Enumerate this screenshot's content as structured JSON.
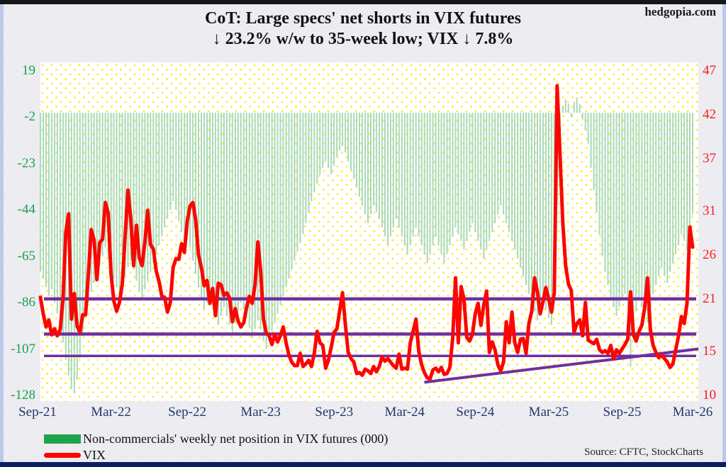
{
  "page": {
    "site": "hedgopia.com",
    "source": "Source: CFTC, StockCharts"
  },
  "title": {
    "line1": "CoT: Large specs' net shorts in VIX futures",
    "line2": "↓ 23.2% w/w to 35-week low; VIX ↓ 7.8%"
  },
  "legend": {
    "bar_label": "Non-commercials' weekly net position in VIX futures (000)",
    "line_label": "VIX"
  },
  "chart_data": {
    "type": "bar+line combo, weekly",
    "x_axis": {
      "tick_labels": [
        "Sep-21",
        "Mar-22",
        "Sep-22",
        "Mar-23",
        "Sep-23",
        "Mar-24",
        "Sep-24",
        "Mar-25",
        "Sep-25",
        "Mar-26"
      ],
      "tick_weeks": [
        -1,
        25,
        52,
        78,
        104,
        129,
        154,
        180,
        206,
        231
      ],
      "weeks_total": 232,
      "label_color": "#21396b"
    },
    "left_axis": {
      "min": -128,
      "max": 19,
      "ticks": [
        19,
        -2,
        -23,
        -44,
        -65,
        -86,
        -107,
        -128
      ],
      "color": "#1aa14c"
    },
    "right_axis": {
      "min": 10,
      "max": 47,
      "ticks": [
        47,
        42,
        37,
        31,
        26,
        21,
        15,
        10
      ],
      "color": "#f31e1e"
    },
    "series": [
      {
        "name": "Non-commercials' weekly net position in VIX futures (000)",
        "type": "bar",
        "axis": "left",
        "color": "#a8d9bb",
        "values": [
          -72,
          -75,
          -79,
          -83,
          -80,
          -86,
          -91,
          -97,
          -104,
          -112,
          -119,
          -125,
          -127,
          -121,
          -111,
          -101,
          -93,
          -86,
          -81,
          -77,
          -73,
          -69,
          -65,
          -61,
          -66,
          -71,
          -75,
          -79,
          -82,
          -78,
          -74,
          -70,
          -67,
          -71,
          -76,
          -81,
          -84,
          -80,
          -76,
          -72,
          -68,
          -64,
          -60,
          -56,
          -52,
          -48,
          -44,
          -40,
          -44,
          -49,
          -54,
          -59,
          -56,
          -61,
          -67,
          -73,
          -79,
          -84,
          -89,
          -86,
          -82,
          -87,
          -92,
          -96,
          -92,
          -88,
          -92,
          -96,
          -100,
          -95,
          -90,
          -86,
          -89,
          -93,
          -97,
          -102,
          -98,
          -94,
          -98,
          -103,
          -107,
          -103,
          -99,
          -95,
          -91,
          -87,
          -83,
          -79,
          -75,
          -71,
          -67,
          -63,
          -59,
          -55,
          -50,
          -45,
          -40,
          -36,
          -32,
          -28,
          -25,
          -22,
          -25,
          -28,
          -24,
          -20,
          -17,
          -15,
          -18,
          -22,
          -26,
          -30,
          -34,
          -38,
          -42,
          -46,
          -50,
          -46,
          -42,
          -45,
          -48,
          -52,
          -56,
          -60,
          -56,
          -52,
          -48,
          -52,
          -56,
          -60,
          -64,
          -60,
          -56,
          -52,
          -56,
          -60,
          -64,
          -68,
          -64,
          -60,
          -56,
          -60,
          -64,
          -68,
          -64,
          -60,
          -56,
          -52,
          -55,
          -58,
          -62,
          -58,
          -54,
          -50,
          -54,
          -58,
          -62,
          -66,
          -62,
          -58,
          -54,
          -50,
          -46,
          -42,
          -46,
          -50,
          -54,
          -58,
          -62,
          -66,
          -70,
          -74,
          -78,
          -82,
          -86,
          -90,
          -94,
          -90,
          -86,
          -89,
          -93,
          -96,
          -75,
          -40,
          -15,
          3,
          6,
          4,
          -2,
          5,
          7,
          4,
          -3,
          -8,
          -14,
          -25,
          -35,
          -45,
          -55,
          -65,
          -72,
          -78,
          -84,
          -88,
          -92,
          -88,
          -85,
          -82,
          -88,
          -115,
          -96,
          -90,
          -85,
          -88,
          -92,
          -95,
          -88,
          -82,
          -78,
          -74,
          -70,
          -74,
          -77,
          -72,
          -68,
          -64,
          -60,
          -55,
          -58,
          -62,
          -60,
          -46
        ]
      },
      {
        "name": "VIX",
        "type": "line",
        "axis": "right",
        "color": "#fb0703",
        "values": [
          21.2,
          19.3,
          17.8,
          18.6,
          16.9,
          17.6,
          16.8,
          17.5,
          21.0,
          28.6,
          30.7,
          18.7,
          21.6,
          17.9,
          17.2,
          19.2,
          19.2,
          23.9,
          28.9,
          27.7,
          23.2,
          27.4,
          27.8,
          32.0,
          30.8,
          23.9,
          20.8,
          19.6,
          20.6,
          22.7,
          28.2,
          33.4,
          30.2,
          24.8,
          29.4,
          25.7,
          24.8,
          27.5,
          31.1,
          27.2,
          26.7,
          24.2,
          23.0,
          21.3,
          21.2,
          19.5,
          20.6,
          24.6,
          25.6,
          25.5,
          27.3,
          26.3,
          29.9,
          31.6,
          32.0,
          30.0,
          26.0,
          24.6,
          22.5,
          23.1,
          20.5,
          22.2,
          19.1,
          22.8,
          22.6,
          21.4,
          21.7,
          21.1,
          18.4,
          19.9,
          18.5,
          17.8,
          18.3,
          20.0,
          21.3,
          20.5,
          22.6,
          27.5,
          24.2,
          18.7,
          17.1,
          16.8,
          15.8,
          17.0,
          16.1,
          16.8,
          17.8,
          16.0,
          14.6,
          13.8,
          13.4,
          13.4,
          14.8,
          13.3,
          13.6,
          14.0,
          13.3,
          14.8,
          17.3,
          16.0,
          15.7,
          13.1,
          14.0,
          15.5,
          17.2,
          17.6,
          19.7,
          21.7,
          18.1,
          14.9,
          14.2,
          13.8,
          12.5,
          12.6,
          12.3,
          13.0,
          12.8,
          12.5,
          13.3,
          12.7,
          13.3,
          14.4,
          13.9,
          14.2,
          13.8,
          13.4,
          13.1,
          14.7,
          13.0,
          13.1,
          13.0,
          16.0,
          17.3,
          18.7,
          15.0,
          13.5,
          12.6,
          12.0,
          11.9,
          12.9,
          13.1,
          12.7,
          13.2,
          12.4,
          12.5,
          13.2,
          16.5,
          23.4,
          16.0,
          22.4,
          21.0,
          16.6,
          16.2,
          17.0,
          19.3,
          20.5,
          18.0,
          20.3,
          21.9,
          14.9,
          16.1,
          15.2,
          13.5,
          12.8,
          13.8,
          18.4,
          16.0,
          19.5,
          16.0,
          14.9,
          16.4,
          16.5,
          14.8,
          18.2,
          19.6,
          23.4,
          21.8,
          19.3,
          20.7,
          22.3,
          21.0,
          19.5,
          21.7,
          45.3,
          37.6,
          29.7,
          24.8,
          22.7,
          22.0,
          17.2,
          18.2,
          18.6,
          16.8,
          20.6,
          16.3,
          16.1,
          15.9,
          16.4,
          15.2,
          14.9,
          15.1,
          14.8,
          15.7,
          14.2,
          15.2,
          14.8,
          15.3,
          15.8,
          16.4,
          21.8,
          16.9,
          16.2,
          17.3,
          18.0,
          20.0,
          23.4,
          17.5,
          15.7,
          14.9,
          14.3,
          14.6,
          14.2,
          13.8,
          13.2,
          13.6,
          15.2,
          16.8,
          19.0,
          18.2,
          20.5,
          29.2,
          26.9
        ]
      }
    ],
    "overlays": {
      "color": "#7030a0",
      "h_lines_vix": [
        21.0,
        17.0,
        14.5
      ],
      "trendline": {
        "w1": 136,
        "v1": 11.5,
        "w2": 233,
        "v2": 15.3
      }
    },
    "grid": "yellow dotted background",
    "legend_position": "bottom-left"
  }
}
